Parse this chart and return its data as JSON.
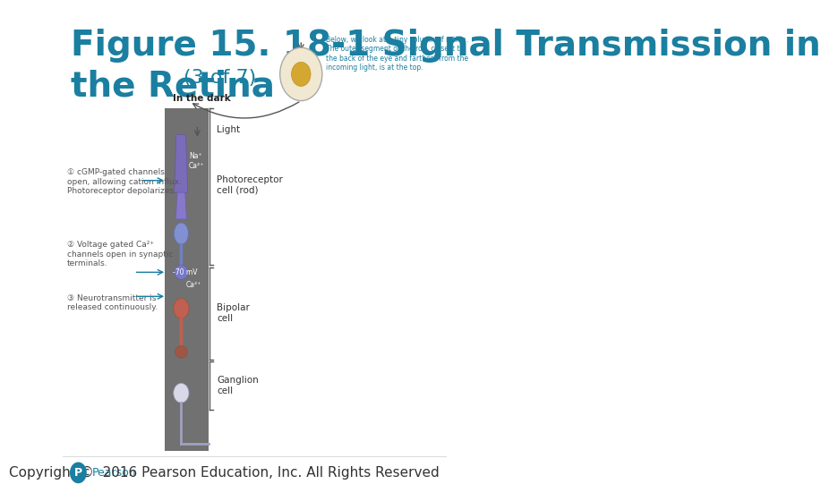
{
  "title_line1": "Figure 15. 18-1 Signal Transmission in",
  "title_line2": "the Retina",
  "subtitle": "(3 of 7)",
  "title_color": "#1a7fa0",
  "title_fontsize": 28,
  "subtitle_fontsize": 16,
  "bg_color": "#ffffff",
  "footer_text": "Copyright ©  2016 Pearson Education, Inc. All Rights Reserved",
  "footer_color": "#333333",
  "footer_fontsize": 11,
  "pearson_color": "#1a7fa0",
  "annotation1": "① cGMP-gated channels\nopen, allowing cation influx.\nPhotoreceptor depolarizes.",
  "annotation2": "② Voltage gated Ca²⁺\nchannels open in synaptic\nterminals.",
  "annotation3": "③ Neurotransmitter is\nreleased continuously.",
  "label_in_dark": "In the dark",
  "label_light": "Light",
  "label_photoreceptor": "Photoreceptor\ncell (rod)",
  "label_bipolar": "Bipolar\ncell",
  "label_ganglion": "Ganglion\ncell",
  "label_na": "Na⁺\nCa²⁺",
  "label_voltage": "-70 mV",
  "label_ca": "Ca²⁺",
  "annotation_color": "#555555",
  "label_color": "#333333",
  "eye_text": "Below, we look at a tiny column of retina.\nThe outer segment of the rod, closest to\nthe back of the eye and farthest from the\nincoming light, is at the top.",
  "eye_text_color": "#1a7fa0"
}
